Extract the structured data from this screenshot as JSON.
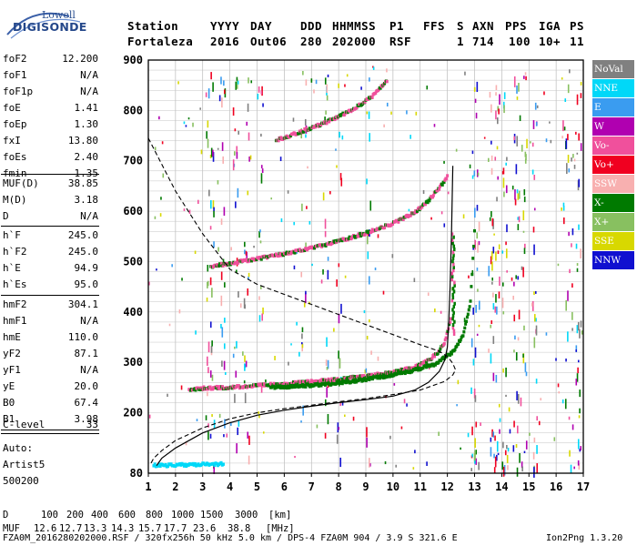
{
  "logo": {
    "line1": "Lowell",
    "line2": "DIGISONDE"
  },
  "header": {
    "labels": [
      "Station",
      "YYYY",
      "DAY",
      "DDD",
      "HHMMSS",
      "P1",
      "FFS",
      "S",
      "AXN",
      "PPS",
      "IGA",
      "PS"
    ],
    "values": [
      "Fortaleza",
      "2016",
      "Out06",
      "280",
      "202000",
      "RSF",
      "1",
      "714",
      "100",
      "10+",
      "11"
    ]
  },
  "params_group1": [
    {
      "label": "foF2",
      "value": "12.200"
    },
    {
      "label": "foF1",
      "value": "N/A"
    },
    {
      "label": "foF1p",
      "value": "N/A"
    },
    {
      "label": "foE",
      "value": "1.41"
    },
    {
      "label": "foEp",
      "value": "1.30"
    },
    {
      "label": "fxI",
      "value": "13.80"
    },
    {
      "label": "foEs",
      "value": "2.40"
    },
    {
      "label": "fmin",
      "value": "1.35"
    }
  ],
  "params_group2": [
    {
      "label": "MUF(D)",
      "value": "38.85"
    },
    {
      "label": "M(D)",
      "value": "3.18"
    },
    {
      "label": "D",
      "value": "N/A"
    }
  ],
  "params_group3": [
    {
      "label": "h`F",
      "value": "245.0"
    },
    {
      "label": "h`F2",
      "value": "245.0"
    },
    {
      "label": "h`E",
      "value": "94.9"
    },
    {
      "label": "h`Es",
      "value": "95.0"
    }
  ],
  "params_group4": [
    {
      "label": "hmF2",
      "value": "304.1"
    },
    {
      "label": "hmF1",
      "value": "N/A"
    },
    {
      "label": "hmE",
      "value": "110.0"
    },
    {
      "label": "yF2",
      "value": "87.1"
    },
    {
      "label": "yF1",
      "value": "N/A"
    },
    {
      "label": "yE",
      "value": "20.0"
    },
    {
      "label": "B0",
      "value": "67.4"
    },
    {
      "label": "B1",
      "value": "3.98"
    }
  ],
  "params_group5": [
    {
      "label": "C-level",
      "value": "33"
    }
  ],
  "autoscale": {
    "line1": "Auto:",
    "line2": "Artist5",
    "line3": "500200"
  },
  "legend": [
    {
      "label": "NoVal",
      "color": "#808080"
    },
    {
      "label": "NNE",
      "color": "#00d8f8"
    },
    {
      "label": "E",
      "color": "#3a9cf0"
    },
    {
      "label": "W",
      "color": "#b000b0"
    },
    {
      "label": "Vo-",
      "color": "#f0509c"
    },
    {
      "label": "Vo+",
      "color": "#f00020"
    },
    {
      "label": "SSW",
      "color": "#f8b0b0"
    },
    {
      "label": "X-",
      "color": "#007a00"
    },
    {
      "label": "X+",
      "color": "#88c060"
    },
    {
      "label": "SSE",
      "color": "#d8d800"
    },
    {
      "label": "NNW",
      "color": "#1010d0"
    }
  ],
  "footer": {
    "dist_label": "D",
    "dist_values": [
      "100",
      "200",
      "400",
      "600",
      "800",
      "1000",
      "1500",
      "3000"
    ],
    "dist_unit": "[km]",
    "muf_label": "MUF",
    "muf_values": [
      "12.6",
      "12.7",
      "13.3",
      "14.3",
      "15.7",
      "17.7",
      "23.6",
      "38.8"
    ],
    "muf_unit": "[MHz]",
    "info": "FZA0M_2016280202000.RSF / 320fx256h 50 kHz 5.0 km / DPS-4 FZA0M 904 / 3.9 S 321.6 E",
    "version": "Ion2Png 1.3.20"
  },
  "chart_data": {
    "type": "scatter",
    "xlabel": "",
    "ylabel": "",
    "xlim": [
      1,
      17
    ],
    "ylim": [
      80,
      900
    ],
    "x_ticks": [
      1,
      2,
      3,
      4,
      5,
      6,
      7,
      8,
      9,
      10,
      11,
      12,
      13,
      14,
      15,
      16,
      17
    ],
    "y_ticks": [
      80,
      200,
      300,
      400,
      500,
      600,
      700,
      800,
      900
    ],
    "grid": true,
    "series": [
      {
        "name": "F2 O-trace",
        "color": "#f0509c",
        "x": [
          2.5,
          3.0,
          4.0,
          5.0,
          6.0,
          7.0,
          8.0,
          9.0,
          10.0,
          10.5,
          11.0,
          11.4,
          11.7,
          11.9,
          12.0,
          12.15
        ],
        "y": [
          245,
          248,
          250,
          253,
          257,
          261,
          266,
          272,
          280,
          286,
          295,
          307,
          322,
          340,
          360,
          390
        ]
      },
      {
        "name": "F2 X-trace",
        "color": "#007a00",
        "x": [
          5.5,
          6.5,
          7.5,
          8.5,
          9.5,
          10.5,
          11.5,
          12.2,
          12.6,
          12.85,
          13.0
        ],
        "y": [
          250,
          252,
          256,
          262,
          270,
          280,
          295,
          320,
          355,
          420,
          560
        ]
      },
      {
        "name": "F2 2nd hop",
        "color": "#f0509c",
        "x": [
          3.3,
          4.0,
          5.0,
          6.0,
          7.0,
          8.0,
          9.0,
          10.0,
          10.8,
          11.3,
          11.7,
          12.0
        ],
        "y": [
          490,
          496,
          505,
          515,
          526,
          540,
          556,
          575,
          597,
          620,
          645,
          668
        ]
      },
      {
        "name": "F2 3rd hop",
        "color": "#f0509c",
        "x": [
          5.7,
          6.5,
          7.5,
          8.5,
          9.3,
          9.8
        ],
        "y": [
          740,
          755,
          775,
          800,
          830,
          860
        ]
      },
      {
        "name": "Es trace",
        "color": "#00d8f8",
        "x": [
          1.2,
          1.6,
          2.0,
          2.4,
          3.0,
          3.4,
          3.8
        ],
        "y": [
          95,
          95,
          96,
          96,
          97,
          97,
          98
        ]
      }
    ],
    "profile": {
      "name": "electron density profile",
      "color": "#000000",
      "x": [
        1.3,
        1.5,
        2.0,
        3.0,
        4.0,
        5.0,
        6.0,
        7.0,
        8.0,
        9.0,
        10.0,
        10.8,
        11.3,
        11.7,
        11.9,
        12.0,
        12.05,
        12.1,
        12.15,
        12.2
      ],
      "y": [
        95,
        110,
        130,
        160,
        180,
        195,
        205,
        213,
        220,
        226,
        233,
        245,
        260,
        282,
        304,
        330,
        380,
        450,
        550,
        690
      ]
    },
    "reflection_curve": {
      "name": "MUF curve",
      "color": "#000000",
      "x": [
        1.0,
        2.0,
        3.0,
        4.0,
        5.0,
        6.0,
        7.0,
        8.0,
        9.0,
        10.0,
        11.0,
        11.7,
        12.0,
        12.2,
        12.3,
        12.2,
        11.9,
        11.0,
        10.0,
        9.0,
        8.0,
        7.0,
        6.0,
        5.0,
        4.0,
        3.0,
        2.0,
        1.5,
        1.2,
        1.1
      ],
      "y": [
        745,
        640,
        555,
        485,
        455,
        435,
        415,
        395,
        375,
        355,
        335,
        322,
        312,
        298,
        285,
        275,
        262,
        245,
        236,
        228,
        222,
        215,
        208,
        200,
        188,
        170,
        145,
        125,
        110,
        100
      ]
    }
  }
}
